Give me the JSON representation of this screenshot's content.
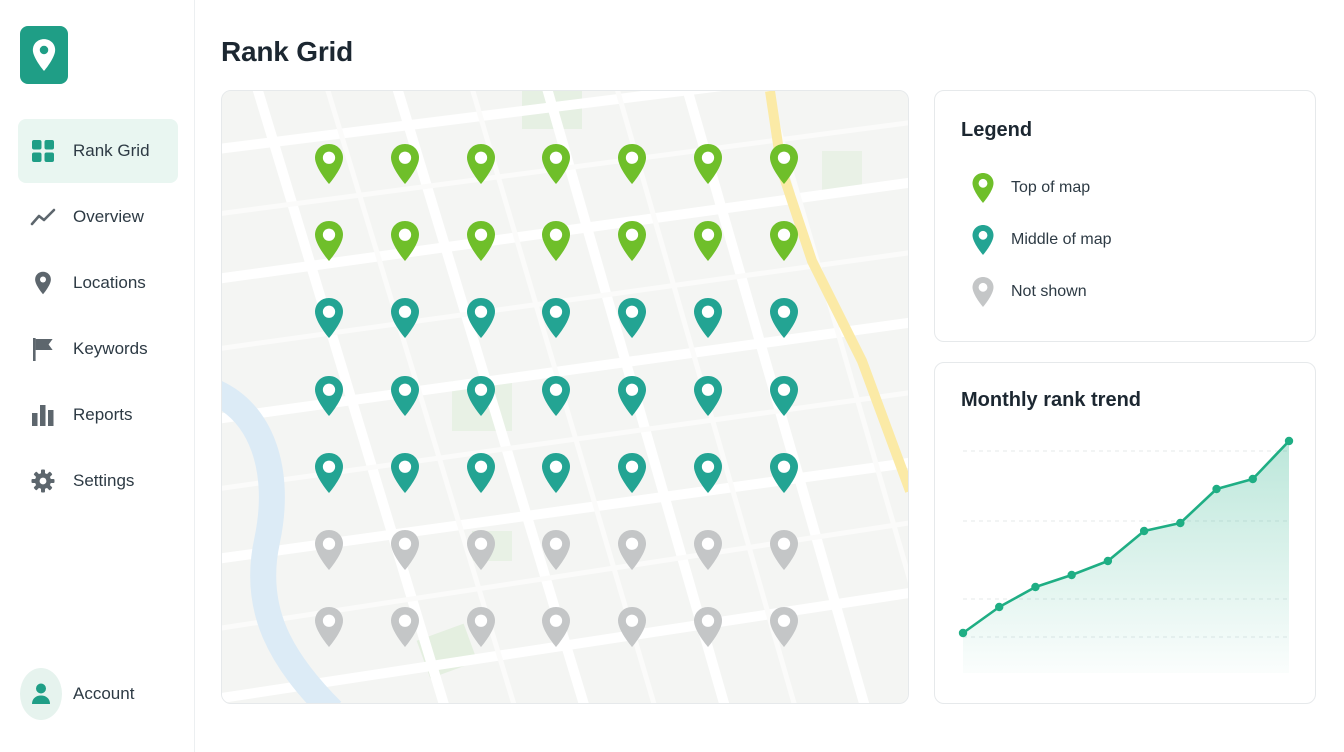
{
  "sidebar": {
    "logo_icon": "map-pin-icon",
    "items": [
      {
        "label": "Rank Grid",
        "icon": "grid-icon",
        "active": true
      },
      {
        "label": "Overview",
        "icon": "trend-line-icon",
        "active": false
      },
      {
        "label": "Locations",
        "icon": "location-pin-icon",
        "active": false
      },
      {
        "label": "Keywords",
        "icon": "flag-icon",
        "active": false
      },
      {
        "label": "Reports",
        "icon": "bar-chart-icon",
        "active": false
      },
      {
        "label": "Settings",
        "icon": "gear-icon",
        "active": false
      }
    ],
    "account": {
      "label": "Account",
      "icon": "user-icon"
    }
  },
  "header": {
    "title": "Rank Grid"
  },
  "grid": {
    "columns": 7,
    "rows": [
      "top",
      "top",
      "middle",
      "middle",
      "middle",
      "none",
      "none"
    ]
  },
  "legend": {
    "title": "Legend",
    "items": [
      {
        "key": "top",
        "label": "Top of map",
        "color": "#6fbf2a"
      },
      {
        "key": "middle",
        "label": "Middle of map",
        "color": "#23a493"
      },
      {
        "key": "none",
        "label": "Not shown",
        "color": "#c4c6c7"
      }
    ]
  },
  "trend": {
    "title": "Monthly rank trend",
    "chart_data": {
      "type": "area",
      "values": [
        1,
        2.3,
        3.3,
        3.9,
        4.6,
        6.1,
        6.5,
        8.2,
        8.7,
        10.6
      ],
      "ylim": [
        0,
        11
      ],
      "grid": true,
      "color": "#1fae84"
    }
  }
}
